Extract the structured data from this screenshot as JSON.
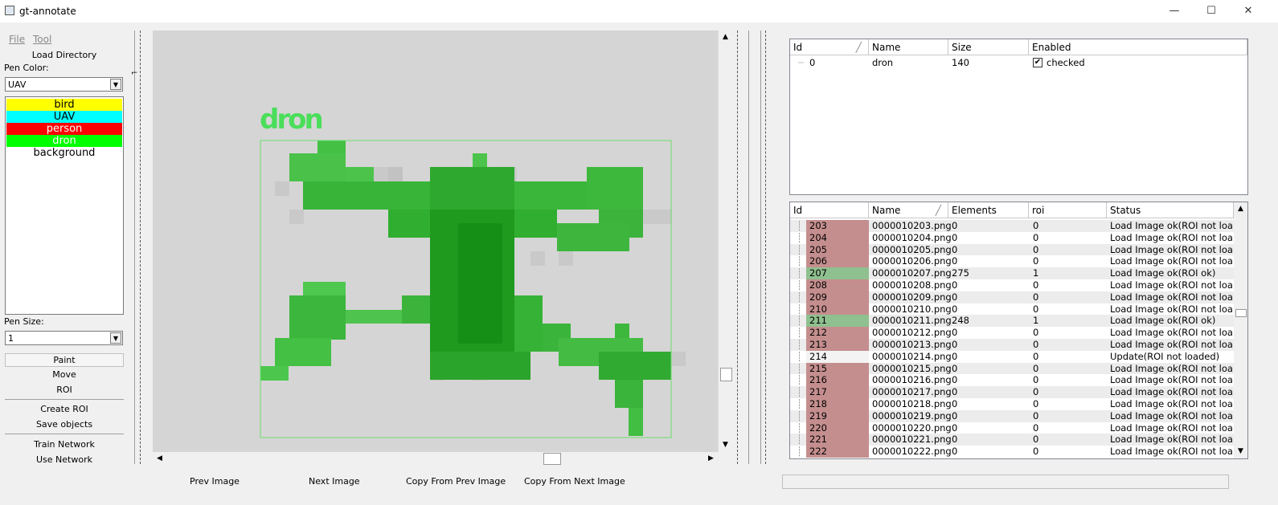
{
  "window": {
    "title": "gt-annotate",
    "controls": [
      "—",
      "☐",
      "✕"
    ]
  },
  "menu": {
    "file": "File",
    "tool": "Tool"
  },
  "left": {
    "load_directory": "Load Directory",
    "pen_color_label": "Pen Color:",
    "pen_color_value": "UAV",
    "classes": [
      {
        "label": "bird",
        "color": "#ffff00",
        "text": "#000000"
      },
      {
        "label": "UAV",
        "color": "#00ffff",
        "text": "#000000"
      },
      {
        "label": "person",
        "color": "#ff0000",
        "text": "#ffffff"
      },
      {
        "label": "dron",
        "color": "#00ff00",
        "text": "#ffffff"
      },
      {
        "label": "background",
        "color": "#ffffff",
        "text": "#000000"
      }
    ],
    "pen_size_label": "Pen Size:",
    "pen_size_value": "1",
    "tools": [
      "Paint",
      "Move",
      "ROI"
    ],
    "actions": [
      "Create ROI",
      "Save objects"
    ],
    "network": [
      "Train Network",
      "Use Network"
    ]
  },
  "canvas": {
    "object_label": "dron",
    "label_color": "#4ade5a"
  },
  "bottom": {
    "prev_image": "Prev Image",
    "next_image": "Next Image",
    "copy_prev": "Copy From Prev Image",
    "copy_next": "Copy From Next Image"
  },
  "objects_table": {
    "headers": [
      "Id",
      "Name",
      "Size",
      "Enabled"
    ],
    "rows": [
      {
        "id": "0",
        "name": "dron",
        "size": "140",
        "enabled": "checked"
      }
    ]
  },
  "files_table": {
    "headers": [
      "Id",
      "Name",
      "Elements",
      "roi",
      "Status"
    ],
    "rows": [
      {
        "id": "203",
        "name": "0000010203.png",
        "elements": "0",
        "roi": "0",
        "status": "Load Image ok(ROI not loa...",
        "state": "bad"
      },
      {
        "id": "204",
        "name": "0000010204.png",
        "elements": "0",
        "roi": "0",
        "status": "Load Image ok(ROI not loa...",
        "state": "bad"
      },
      {
        "id": "205",
        "name": "0000010205.png",
        "elements": "0",
        "roi": "0",
        "status": "Load Image ok(ROI not loa...",
        "state": "bad"
      },
      {
        "id": "206",
        "name": "0000010206.png",
        "elements": "0",
        "roi": "0",
        "status": "Load Image ok(ROI not loa...",
        "state": "bad"
      },
      {
        "id": "207",
        "name": "0000010207.png",
        "elements": "275",
        "roi": "1",
        "status": "Load Image ok(ROI ok)",
        "state": "ok"
      },
      {
        "id": "208",
        "name": "0000010208.png",
        "elements": "0",
        "roi": "0",
        "status": "Load Image ok(ROI not loa...",
        "state": "bad"
      },
      {
        "id": "209",
        "name": "0000010209.png",
        "elements": "0",
        "roi": "0",
        "status": "Load Image ok(ROI not loa...",
        "state": "bad"
      },
      {
        "id": "210",
        "name": "0000010210.png",
        "elements": "0",
        "roi": "0",
        "status": "Load Image ok(ROI not loa...",
        "state": "bad"
      },
      {
        "id": "211",
        "name": "0000010211.png",
        "elements": "248",
        "roi": "1",
        "status": "Load Image ok(ROI ok)",
        "state": "ok"
      },
      {
        "id": "212",
        "name": "0000010212.png",
        "elements": "0",
        "roi": "0",
        "status": "Load Image ok(ROI not loa...",
        "state": "bad"
      },
      {
        "id": "213",
        "name": "0000010213.png",
        "elements": "0",
        "roi": "0",
        "status": "Load Image ok(ROI not loa...",
        "state": "bad"
      },
      {
        "id": "214",
        "name": "0000010214.png",
        "elements": "0",
        "roi": "0",
        "status": "Update(ROI not loaded)",
        "state": "current"
      },
      {
        "id": "215",
        "name": "0000010215.png",
        "elements": "0",
        "roi": "0",
        "status": "Load Image ok(ROI not loa...",
        "state": "bad"
      },
      {
        "id": "216",
        "name": "0000010216.png",
        "elements": "0",
        "roi": "0",
        "status": "Load Image ok(ROI not loa...",
        "state": "bad"
      },
      {
        "id": "217",
        "name": "0000010217.png",
        "elements": "0",
        "roi": "0",
        "status": "Load Image ok(ROI not loa...",
        "state": "bad"
      },
      {
        "id": "218",
        "name": "0000010218.png",
        "elements": "0",
        "roi": "0",
        "status": "Load Image ok(ROI not loa...",
        "state": "bad"
      },
      {
        "id": "219",
        "name": "0000010219.png",
        "elements": "0",
        "roi": "0",
        "status": "Load Image ok(ROI not loa...",
        "state": "bad"
      },
      {
        "id": "220",
        "name": "0000010220.png",
        "elements": "0",
        "roi": "0",
        "status": "Load Image ok(ROI not loa...",
        "state": "bad"
      },
      {
        "id": "221",
        "name": "0000010221.png",
        "elements": "0",
        "roi": "0",
        "status": "Load Image ok(ROI not loa...",
        "state": "bad"
      },
      {
        "id": "222",
        "name": "0000010222.png",
        "elements": "0",
        "roi": "0",
        "status": "Load Image ok(ROI not loa...",
        "state": "bad"
      }
    ]
  },
  "status_colors": {
    "bad": "#c58e8e",
    "ok": "#8fc08f",
    "current": "#f3f3f3"
  }
}
